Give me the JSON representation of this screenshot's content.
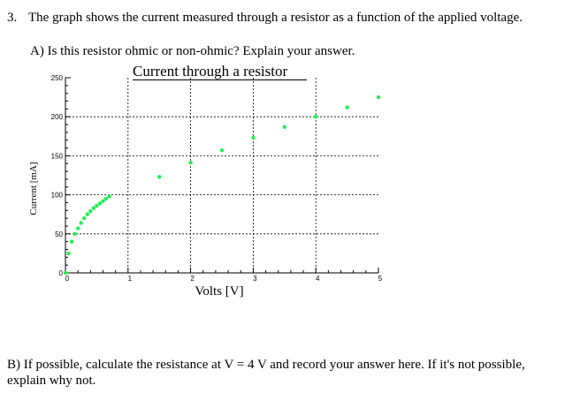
{
  "question": {
    "number": "3.",
    "text": "The graph shows the current measured through a resistor as a function of the applied voltage.",
    "part_a": "A) Is this resistor ohmic or non-ohmic? Explain your answer.",
    "part_b": "B) If possible, calculate the resistance at V = 4 V and record your answer here.  If it's not possible, explain why not."
  },
  "colors": {
    "points": "#22ee55",
    "grid": "#000000"
  },
  "chart_data": {
    "type": "scatter",
    "title": "Current through a resistor",
    "xlabel": "Volts [V]",
    "ylabel": "Current [mA]",
    "xlim": [
      0,
      5
    ],
    "ylim": [
      0,
      250
    ],
    "grid": true,
    "x_ticks": [
      "0",
      "1",
      "2",
      "3",
      "4",
      "5"
    ],
    "y_ticks": [
      "0",
      "50",
      "100",
      "150",
      "200",
      "250"
    ],
    "x": [
      0,
      0.05,
      0.1,
      0.15,
      0.2,
      0.25,
      0.3,
      0.35,
      0.4,
      0.45,
      0.5,
      0.55,
      0.6,
      0.65,
      0.7,
      1.5,
      2.0,
      2.5,
      3.0,
      3.5,
      4.0,
      4.5,
      5.0
    ],
    "y": [
      0,
      25,
      40,
      50,
      57,
      64,
      70,
      75,
      79,
      83,
      86,
      89,
      92,
      95,
      98,
      123,
      141,
      157,
      173,
      187,
      200,
      212,
      225
    ]
  }
}
